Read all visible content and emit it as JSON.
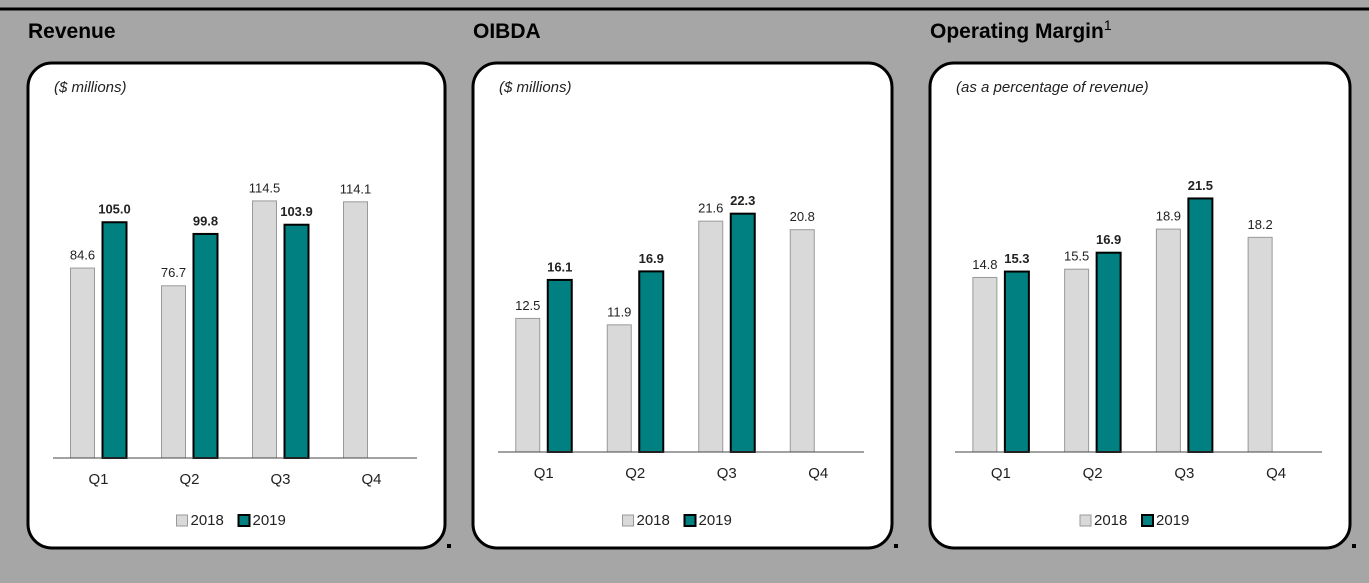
{
  "chart_data": [
    {
      "type": "bar",
      "title": "Revenue",
      "subtitle": "($ millions)",
      "categories": [
        "Q1",
        "Q2",
        "Q3",
        "Q4"
      ],
      "series": [
        {
          "name": "2018",
          "color": "#d9d9d9",
          "values": [
            84.6,
            76.7,
            114.5,
            114.1
          ],
          "value_labels": [
            "84.6",
            "76.7",
            "114.5",
            "114.1"
          ]
        },
        {
          "name": "2019",
          "color": "#008080",
          "values": [
            105.0,
            99.8,
            103.9,
            null
          ],
          "value_labels": [
            "105.0",
            "99.8",
            "103.9",
            null
          ]
        }
      ],
      "ylim": [
        0,
        155
      ],
      "legend": "bottom"
    },
    {
      "type": "bar",
      "title": "OIBDA",
      "subtitle": "($ millions)",
      "categories": [
        "Q1",
        "Q2",
        "Q3",
        "Q4"
      ],
      "series": [
        {
          "name": "2018",
          "color": "#d9d9d9",
          "values": [
            12.5,
            11.9,
            21.6,
            20.8
          ],
          "value_labels": [
            "12.5",
            "11.9",
            "21.6",
            "20.8"
          ]
        },
        {
          "name": "2019",
          "color": "#008080",
          "values": [
            16.1,
            16.9,
            22.3,
            null
          ],
          "value_labels": [
            "16.1",
            "16.9",
            "22.3",
            null
          ]
        }
      ],
      "ylim": [
        0,
        32
      ],
      "legend": "bottom"
    },
    {
      "type": "bar",
      "title": "Operating Margin",
      "title_superscript": "1",
      "subtitle": "(as a percentage of revenue)",
      "categories": [
        "Q1",
        "Q2",
        "Q3",
        "Q4"
      ],
      "series": [
        {
          "name": "2018",
          "color": "#d9d9d9",
          "values": [
            14.8,
            15.5,
            18.9,
            18.2
          ],
          "value_labels": [
            "14.8",
            "15.5",
            "18.9",
            "18.2"
          ]
        },
        {
          "name": "2019",
          "color": "#008080",
          "values": [
            15.3,
            16.9,
            21.5,
            null
          ],
          "value_labels": [
            "15.3",
            "16.9",
            "21.5",
            null
          ]
        }
      ],
      "ylim": [
        0,
        29
      ],
      "legend": "bottom"
    }
  ]
}
